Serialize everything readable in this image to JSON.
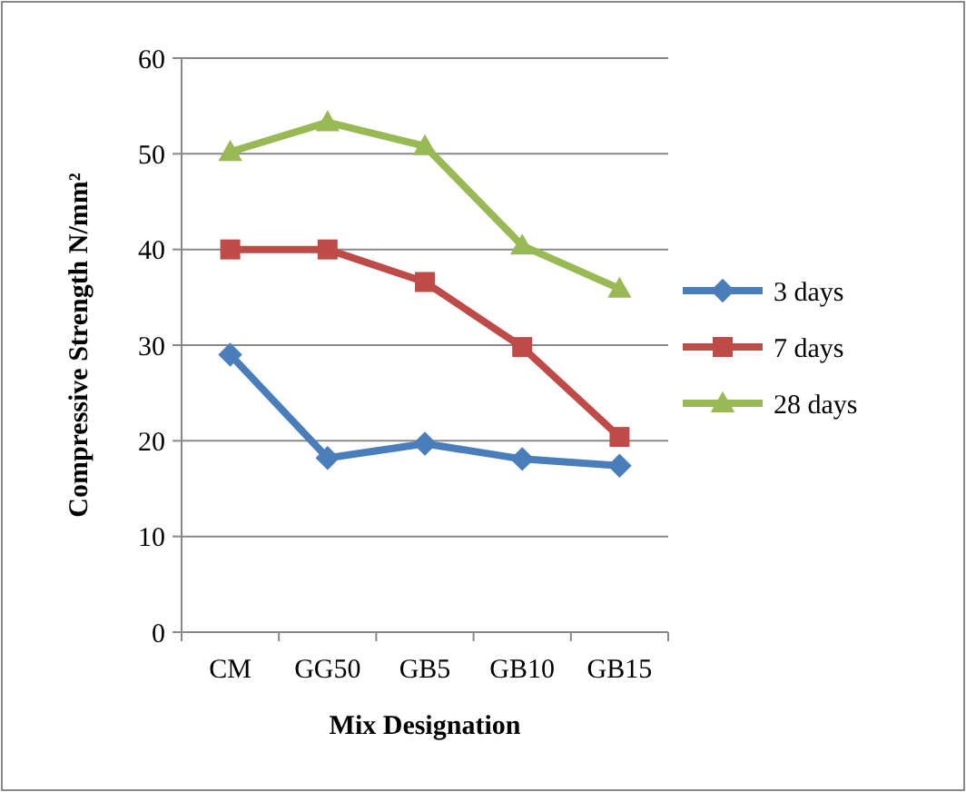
{
  "chart_data": {
    "type": "line",
    "xlabel": "Mix Designation",
    "ylabel": "Compressive Strength N/mm²",
    "categories": [
      "CM",
      "GG50",
      "GB5",
      "GB10",
      "GB15"
    ],
    "series": [
      {
        "name": "3 days",
        "color": "#4a7ebb",
        "marker": "diamond",
        "values": [
          29.0,
          18.2,
          19.7,
          18.1,
          17.4
        ]
      },
      {
        "name": "7 days",
        "color": "#be4b48",
        "marker": "square",
        "values": [
          40.0,
          40.0,
          36.6,
          29.8,
          20.4
        ]
      },
      {
        "name": "28 days",
        "color": "#98b954",
        "marker": "triangle",
        "values": [
          50.2,
          53.3,
          50.8,
          40.4,
          35.9
        ]
      }
    ],
    "ylim": [
      0,
      60
    ],
    "yticks": [
      0,
      10,
      20,
      30,
      40,
      50,
      60
    ],
    "grid": "y",
    "legend": "right",
    "line_style": "solid"
  }
}
